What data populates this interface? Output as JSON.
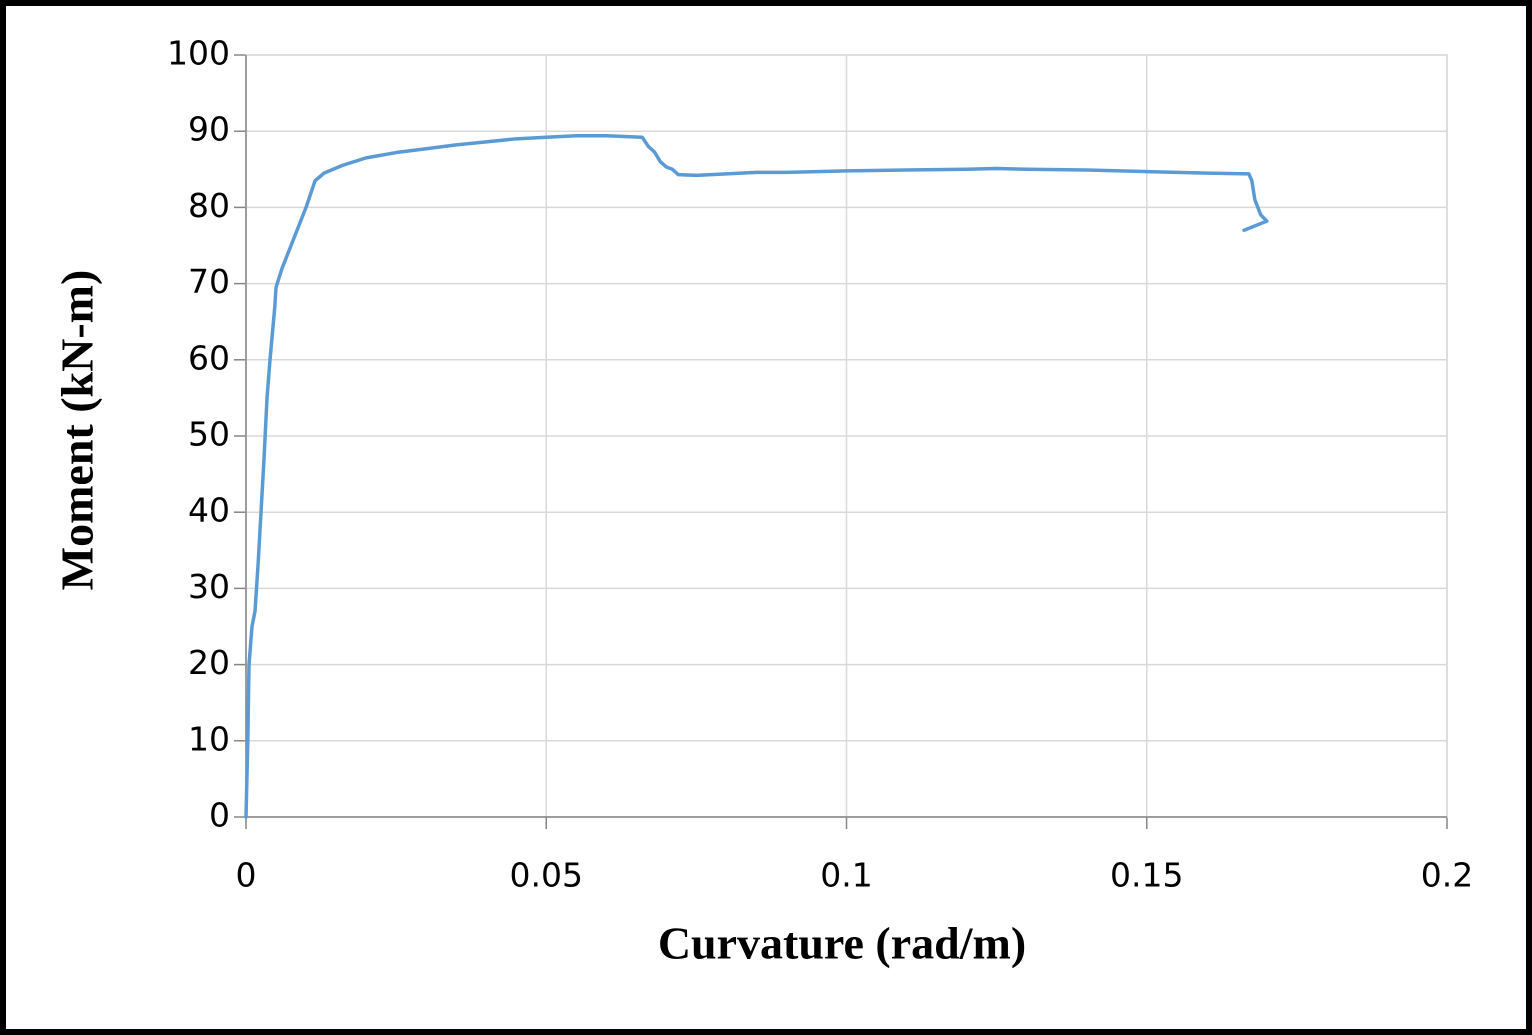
{
  "chart_data": {
    "type": "line",
    "x_label": "Curvature (rad/m)",
    "y_label": "Moment (kN-m)",
    "x": [
      0,
      0.0003,
      0.0005,
      0.001,
      0.0015,
      0.002,
      0.0025,
      0.003,
      0.0035,
      0.004,
      0.0048,
      0.005,
      0.006,
      0.008,
      0.01,
      0.0115,
      0.013,
      0.016,
      0.02,
      0.025,
      0.03,
      0.035,
      0.04,
      0.045,
      0.05,
      0.055,
      0.06,
      0.066,
      0.067,
      0.068,
      0.069,
      0.07,
      0.071,
      0.072,
      0.075,
      0.08,
      0.085,
      0.09,
      0.1,
      0.11,
      0.12,
      0.125,
      0.13,
      0.14,
      0.15,
      0.16,
      0.167,
      0.1675,
      0.168,
      0.1685,
      0.169,
      0.17,
      0.1662
    ],
    "series": [
      {
        "name": "Moment",
        "color": "#5b9bd5",
        "values": [
          0,
          10,
          20,
          25,
          27,
          33,
          40,
          47,
          55,
          60,
          67,
          69.5,
          72,
          76,
          80,
          83.5,
          84.5,
          85.5,
          86.5,
          87.2,
          87.7,
          88.2,
          88.6,
          89,
          89.2,
          89.4,
          89.4,
          89.2,
          88,
          87.3,
          86,
          85.3,
          85,
          84.3,
          84.2,
          84.4,
          84.6,
          84.6,
          84.8,
          84.9,
          85,
          85.1,
          85,
          84.9,
          84.7,
          84.5,
          84.4,
          83.5,
          81,
          80,
          79,
          78.2,
          77
        ]
      }
    ],
    "xlim": [
      0,
      0.2
    ],
    "xticks": [
      0,
      0.05,
      0.1,
      0.15,
      0.2
    ],
    "ylim": [
      0,
      100
    ],
    "yticks": [
      0,
      10,
      20,
      30,
      40,
      50,
      60,
      70,
      80,
      90,
      100
    ],
    "grid": true
  }
}
